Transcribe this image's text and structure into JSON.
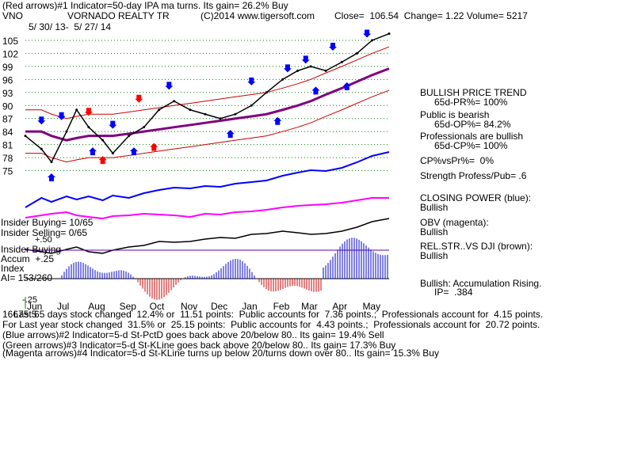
{
  "header": {
    "line1": "(Red arrows)#1 Indicator=50-day IPA ma turns. Its gain= 26.2% Buy",
    "ticker": "VNO",
    "name": "VORNADO REALTY TR",
    "copyright": "(C)2014 www.tigersoft.com",
    "stats": "Close=  106.54  Change= 1.22 Volume= 5217",
    "date_range": "5/ 30/ 13-  5/ 27/ 14"
  },
  "chart_data": {
    "type": "line",
    "title": "VORNADO REALTY TR",
    "ylim": [
      72,
      107
    ],
    "yticks": [
      "105",
      "102",
      "99",
      "96",
      "93",
      "90",
      "87",
      "84",
      "81",
      "78",
      "75"
    ],
    "months": [
      "Jun",
      "Jul",
      "Aug",
      "Sep",
      "Oct",
      "Nov",
      "Dec",
      "Jan",
      "Feb",
      "Mar",
      "Apr",
      "May"
    ],
    "price_series": {
      "name": "Close",
      "x": [
        "2013-05-30",
        "2013-06-15",
        "2013-06-25",
        "2013-07-10",
        "2013-07-20",
        "2013-08-01",
        "2013-08-15",
        "2013-08-25",
        "2013-09-10",
        "2013-09-25",
        "2013-10-10",
        "2013-10-25",
        "2013-11-10",
        "2013-11-25",
        "2013-12-10",
        "2013-12-25",
        "2014-01-10",
        "2014-01-25",
        "2014-02-10",
        "2014-02-25",
        "2014-03-10",
        "2014-03-25",
        "2014-04-10",
        "2014-04-25",
        "2014-05-10",
        "2014-05-27"
      ],
      "values": [
        83,
        80,
        77,
        84,
        89,
        85,
        82,
        79,
        83,
        85,
        89,
        91,
        89,
        88,
        87,
        88,
        90,
        93,
        96,
        98,
        99,
        98,
        100,
        102,
        105,
        106.54
      ]
    },
    "ma_series": {
      "name": "65-day MA",
      "values": [
        84,
        84,
        83,
        82,
        82.5,
        83,
        83,
        83,
        83.5,
        84,
        84.5,
        85,
        85.5,
        86,
        86.5,
        87,
        87.5,
        88,
        89,
        90,
        91,
        92.5,
        94,
        95.5,
        97,
        98.5
      ]
    },
    "arrows": [
      {
        "color": "red",
        "dir": "down",
        "date": "2013-08-01",
        "value": 88
      },
      {
        "color": "red",
        "dir": "up",
        "date": "2013-08-15",
        "value": 78
      },
      {
        "color": "red",
        "dir": "down",
        "date": "2013-09-20",
        "value": 91
      },
      {
        "color": "red",
        "dir": "up",
        "date": "2013-10-05",
        "value": 81
      },
      {
        "color": "blue",
        "dir": "down",
        "date": "2013-06-15",
        "value": 86
      },
      {
        "color": "blue",
        "dir": "up",
        "date": "2013-06-25",
        "value": 74
      },
      {
        "color": "blue",
        "dir": "down",
        "date": "2013-07-05",
        "value": 87
      },
      {
        "color": "blue",
        "dir": "up",
        "date": "2013-08-05",
        "value": 80
      },
      {
        "color": "blue",
        "dir": "down",
        "date": "2013-08-25",
        "value": 85
      },
      {
        "color": "blue",
        "dir": "up",
        "date": "2013-09-15",
        "value": 80
      },
      {
        "color": "blue",
        "dir": "down",
        "date": "2013-10-20",
        "value": 94
      },
      {
        "color": "blue",
        "dir": "up",
        "date": "2013-12-20",
        "value": 84
      },
      {
        "color": "blue",
        "dir": "down",
        "date": "2014-01-10",
        "value": 95
      },
      {
        "color": "blue",
        "dir": "up",
        "date": "2014-02-05",
        "value": 87
      },
      {
        "color": "blue",
        "dir": "down",
        "date": "2014-02-15",
        "value": 98
      },
      {
        "color": "blue",
        "dir": "down",
        "date": "2014-03-05",
        "value": 100
      },
      {
        "color": "blue",
        "dir": "up",
        "date": "2014-03-15",
        "value": 94
      },
      {
        "color": "blue",
        "dir": "down",
        "date": "2014-04-01",
        "value": 103
      },
      {
        "color": "blue",
        "dir": "up",
        "date": "2014-04-15",
        "value": 95
      },
      {
        "color": "blue",
        "dir": "down",
        "date": "2014-05-05",
        "value": 106
      }
    ]
  },
  "sidebar": {
    "trend_title": "BULLISH PRICE TREND",
    "pr": "65d-PR%= 100%",
    "public_label": "Public is bearish",
    "op": "65d-OP%= 84.2%",
    "pros_label": "Professionals are bullish",
    "cp": "65d-CP%= 100%",
    "cpvspr": "CP%vsPr%=  0%",
    "strength": "Strength Profess/Pub= .6",
    "closing_power_label": "CLOSING POWER (blue):",
    "closing_power_value": "Bullish",
    "obv_label": "OBV (magenta):",
    "obv_value": "Bullish",
    "relstr_label": "REL.STR..VS DJI (brown):",
    "relstr_value": "Bullish",
    "accum_label": "Bullish: Accumulation Rising.",
    "ip": "IP=  .384"
  },
  "insider": {
    "buying": "Insider Buying= 10/65",
    "selling": "Insider Selling= 0/65",
    "title": "Insider Buying",
    "accum_line": "Accum  +.25",
    "index": "Index",
    "ai": "AI= 153/260",
    "plus50": "+.50",
    "minus25": "-.25"
  },
  "footer": {
    "line1": "Last 65 days stock changed  12.4% or  11.51 points:  Public accounts for  7.36 points.;  Professionals account for  4.15 points.",
    "line1_prefix": "16675.5",
    "line2": "For Last year stock changed  31.5% or  25.15 points:  Public accounts for  4.43 points.;  Professionals account for  20.72 points.",
    "line3": "(Blue arrows)#2 Indicator=5-d St-PctD goes back above 20/below 80.. Its gain= 19.4% Sell",
    "line4": "(Green arrows)#3 Indicator=5-d St-KLine goes back above 20/below 80.. Its gain= 17.3% Buy",
    "line5": "(Magenta arrows)#4 Indicator=5-d St-KLine turns up below 20/turns down over 80.. Its gain= 15.3% Buy"
  },
  "colors": {
    "price": "#000000",
    "ma": "#800080",
    "bands": "#cc0000",
    "closing_power": "#0000ff",
    "obv": "#ff00ff",
    "accum_bars": "#0000cc",
    "distrib_bars": "#cc0000",
    "grid": "#008000"
  }
}
